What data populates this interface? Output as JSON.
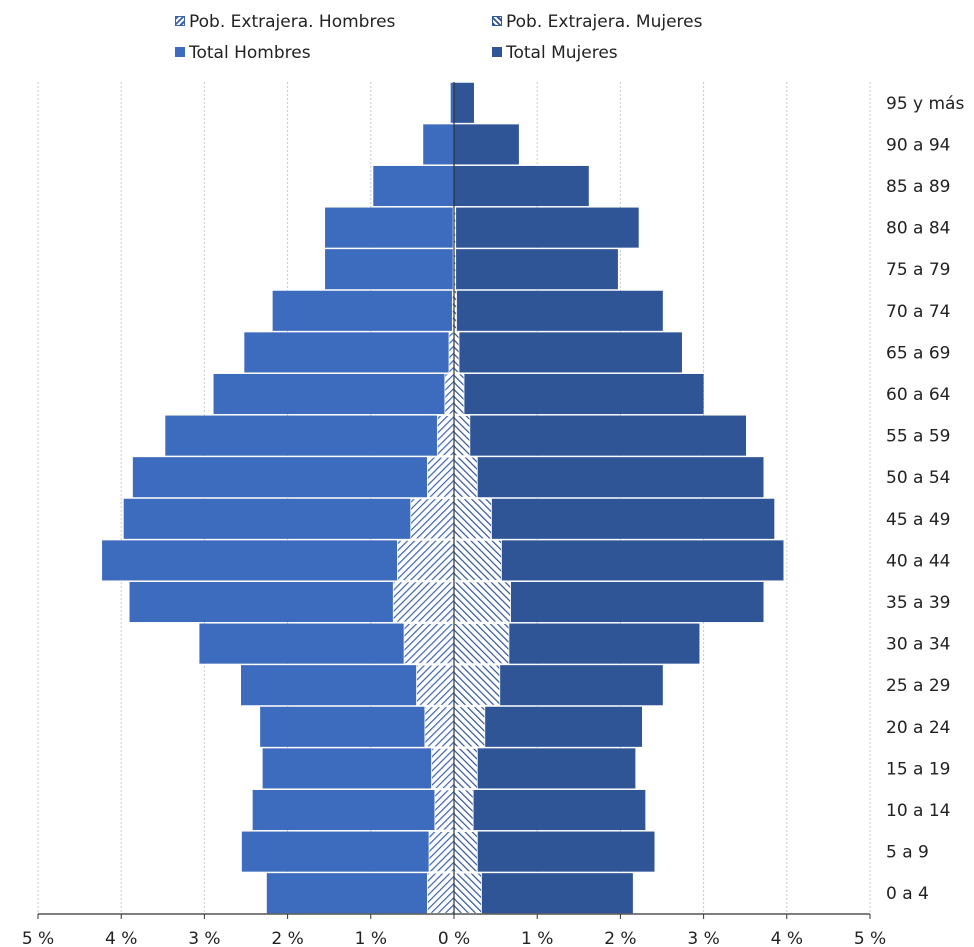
{
  "legend": {
    "ext_hombres": "Pob. Extrajera. Hombres",
    "ext_mujeres": "Pob. Extrajera. Mujeres",
    "total_hombres": "Total Hombres",
    "total_mujeres": "Total Mujeres"
  },
  "colors": {
    "total_hombres": "#3d6bbd",
    "total_mujeres": "#2f5597",
    "ext_hombres": "#3c64ad",
    "ext_mujeres": "#2f5597"
  },
  "chart_data": {
    "type": "bar",
    "orientation": "horizontal",
    "categories": [
      "0 a 4",
      "5 a 9",
      "10 a 14",
      "15 a 19",
      "20 a 24",
      "25 a 29",
      "30 a 34",
      "35 a 39",
      "40 a 44",
      "45 a 49",
      "50 a 54",
      "55 a 59",
      "60 a 64",
      "65 a 69",
      "70 a 74",
      "75 a 79",
      "80 a 84",
      "85 a 89",
      "90 a 94",
      "95 y más"
    ],
    "series": [
      {
        "name": "Total Hombres",
        "side": "left",
        "values": [
          2.25,
          2.55,
          2.42,
          2.3,
          2.33,
          2.56,
          3.06,
          3.9,
          4.23,
          3.97,
          3.86,
          3.47,
          2.89,
          2.52,
          2.18,
          1.55,
          1.55,
          0.97,
          0.37,
          0.04
        ]
      },
      {
        "name": "Total Mujeres",
        "side": "right",
        "values": [
          2.15,
          2.41,
          2.3,
          2.18,
          2.26,
          2.51,
          2.95,
          3.72,
          3.96,
          3.85,
          3.72,
          3.51,
          3.0,
          2.74,
          2.51,
          1.97,
          2.22,
          1.62,
          0.78,
          0.24
        ]
      },
      {
        "name": "Pob. Extrajera. Hombres",
        "side": "left",
        "values": [
          0.32,
          0.3,
          0.23,
          0.27,
          0.35,
          0.45,
          0.6,
          0.73,
          0.68,
          0.52,
          0.32,
          0.2,
          0.11,
          0.06,
          0.02,
          0.01,
          0.01,
          0.0,
          0.0,
          0.0
        ]
      },
      {
        "name": "Pob. Extrajera. Mujeres",
        "side": "right",
        "values": [
          0.33,
          0.28,
          0.23,
          0.28,
          0.37,
          0.55,
          0.66,
          0.68,
          0.57,
          0.45,
          0.28,
          0.19,
          0.12,
          0.06,
          0.03,
          0.02,
          0.02,
          0.0,
          0.0,
          0.0
        ]
      }
    ],
    "x_ticks": [
      "5 %",
      "4 %",
      "3 %",
      "2 %",
      "1 %",
      "0 %",
      "1 %",
      "2 %",
      "3 %",
      "4 %",
      "5 %"
    ],
    "xlim": [
      -5,
      5
    ],
    "grid": true,
    "legend_position": "top"
  }
}
